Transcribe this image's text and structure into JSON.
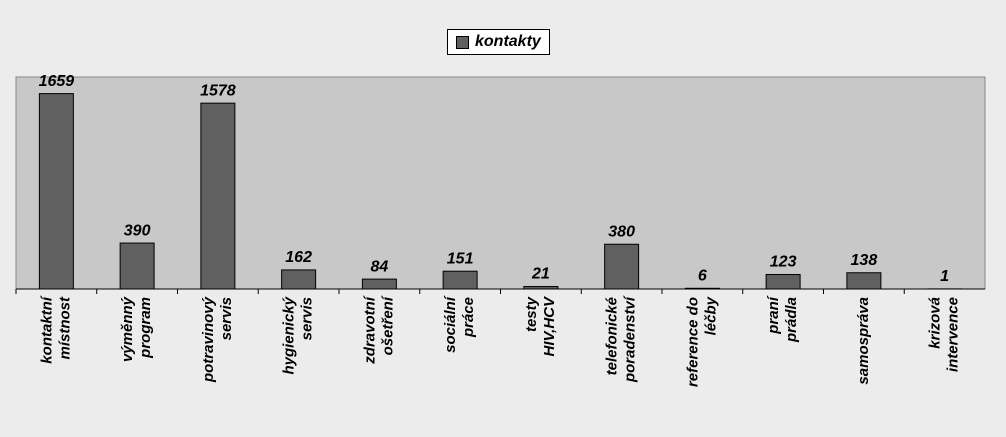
{
  "chart_data": {
    "type": "bar",
    "categories": [
      "kontaktní\nmístnost",
      "výměnný\nprogram",
      "potravinový\nservis",
      "hygienický\nservis",
      "zdravotní\nošetření",
      "sociální\npráce",
      "testy\nHIV,HCV",
      "telefonické\nporadenství",
      "reference do\nléčby",
      "praní\nprádla",
      "samospráva",
      "krizová\nintervence"
    ],
    "series": [
      {
        "name": "kontakty",
        "color": "#606060",
        "values": [
          1659,
          390,
          1578,
          162,
          84,
          151,
          21,
          380,
          6,
          123,
          138,
          1
        ]
      }
    ],
    "ylim": [
      0,
      1800
    ],
    "legend": "top"
  }
}
